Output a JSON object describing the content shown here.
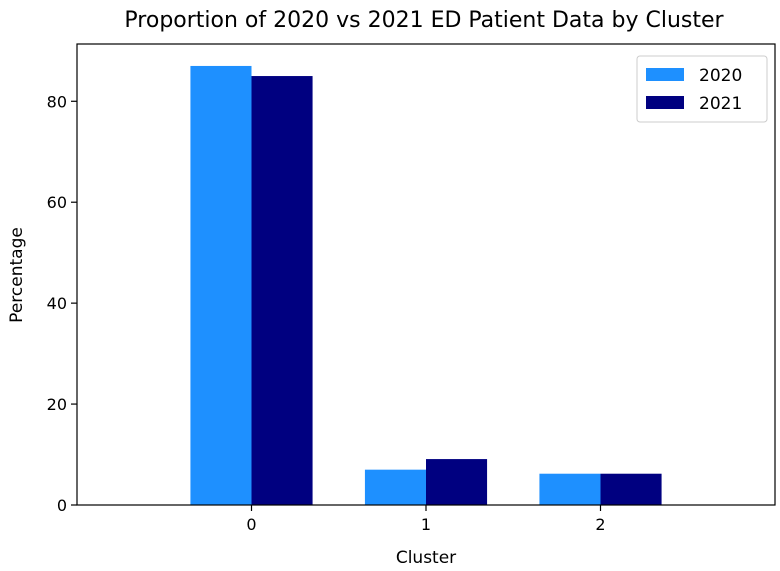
{
  "chart_data": {
    "type": "bar",
    "title": "Proportion of 2020 vs 2021 ED Patient Data by Cluster",
    "xlabel": "Cluster",
    "ylabel": "Percentage",
    "categories": [
      "0",
      "1",
      "2"
    ],
    "series": [
      {
        "name": "2020",
        "color": "#1e90ff",
        "values": [
          87.0,
          7.0,
          6.2
        ]
      },
      {
        "name": "2021",
        "color": "#000080",
        "values": [
          85.0,
          9.1,
          6.2
        ]
      }
    ],
    "xlim": [
      -1,
      3
    ],
    "ylim": [
      0,
      91.35
    ],
    "yticks": [
      0,
      20,
      40,
      60,
      80
    ],
    "grid": false,
    "legend_position": "top-right"
  }
}
